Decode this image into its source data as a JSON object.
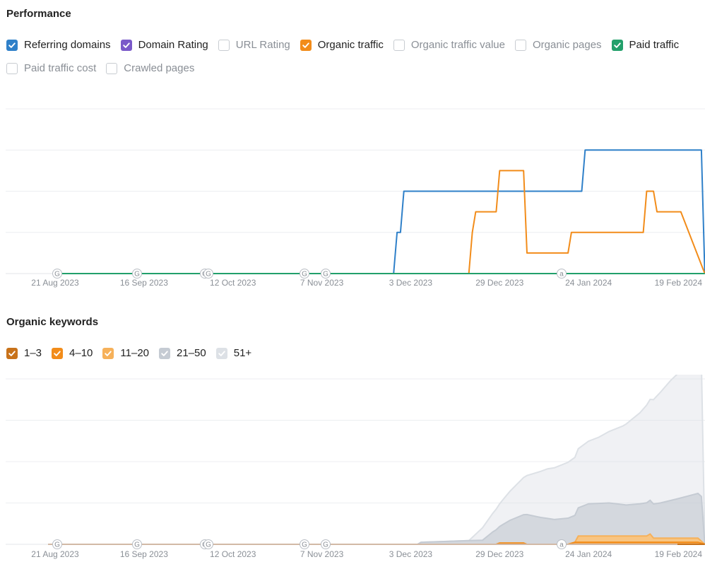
{
  "performance": {
    "title": "Performance",
    "legend_row1": [
      {
        "label": "Referring domains",
        "checked": true,
        "color": "#2f80c9"
      },
      {
        "label": "Domain Rating",
        "checked": true,
        "color": "#7a59c9"
      },
      {
        "label": "URL Rating",
        "checked": false,
        "color": "#c8ccd1"
      },
      {
        "label": "Organic traffic",
        "checked": true,
        "color": "#f28c1a"
      },
      {
        "label": "Organic traffic value",
        "checked": false,
        "color": "#c8ccd1"
      },
      {
        "label": "Organic pages",
        "checked": false,
        "color": "#c8ccd1"
      },
      {
        "label": "Paid traffic",
        "checked": true,
        "color": "#22a06b"
      }
    ],
    "legend_row2": [
      {
        "label": "Paid traffic cost",
        "checked": false,
        "color": "#c8ccd1"
      },
      {
        "label": "Crawled pages",
        "checked": false,
        "color": "#c8ccd1"
      }
    ]
  },
  "keywords": {
    "title": "Organic keywords",
    "legend": [
      {
        "label": "1–3",
        "checked": true,
        "color": "#c8721a"
      },
      {
        "label": "4–10",
        "checked": true,
        "color": "#f28c1a"
      },
      {
        "label": "11–20",
        "checked": true,
        "color": "#f6b15a"
      },
      {
        "label": "21–50",
        "checked": true,
        "color": "#c5cbd3"
      },
      {
        "label": "51+",
        "checked": true,
        "color": "#dde1e6"
      }
    ]
  },
  "chart_data": [
    {
      "type": "line",
      "title": "Performance",
      "x_ticks": [
        "21 Aug 2023",
        "16 Sep 2023",
        "12 Oct 2023",
        "7 Nov 2023",
        "3 Dec 2023",
        "29 Dec 2023",
        "24 Jan 2024",
        "19 Feb 2024"
      ],
      "event_markers": [
        "G",
        "G",
        "G",
        "G",
        "G",
        "G",
        "a"
      ],
      "ylim": [
        0,
        4
      ],
      "grid": true,
      "series": [
        {
          "name": "Referring domains",
          "color": "#2f80c9",
          "points": [
            [
              "2023-08-21",
              0
            ],
            [
              "2023-11-28",
              0
            ],
            [
              "2023-11-29",
              1
            ],
            [
              "2023-11-30",
              1
            ],
            [
              "2023-12-01",
              2
            ],
            [
              "2024-01-22",
              2
            ],
            [
              "2024-01-23",
              3
            ],
            [
              "2024-02-26",
              3
            ],
            [
              "2024-02-27",
              0
            ]
          ]
        },
        {
          "name": "Organic traffic",
          "color": "#f28c1a",
          "points": [
            [
              "2023-08-21",
              0
            ],
            [
              "2023-12-20",
              0
            ],
            [
              "2023-12-21",
              1
            ],
            [
              "2023-12-22",
              1.5
            ],
            [
              "2023-12-28",
              1.5
            ],
            [
              "2023-12-29",
              2.5
            ],
            [
              "2024-01-05",
              2.5
            ],
            [
              "2024-01-06",
              0.5
            ],
            [
              "2024-01-18",
              0.5
            ],
            [
              "2024-01-19",
              1
            ],
            [
              "2024-02-09",
              1
            ],
            [
              "2024-02-10",
              2
            ],
            [
              "2024-02-12",
              2
            ],
            [
              "2024-02-13",
              1.5
            ],
            [
              "2024-02-20",
              1.5
            ],
            [
              "2024-02-27",
              0
            ]
          ]
        },
        {
          "name": "Paid traffic",
          "color": "#22a06b",
          "points": [
            [
              "2023-08-21",
              0
            ],
            [
              "2024-02-27",
              0
            ]
          ]
        },
        {
          "name": "Domain Rating",
          "color": "#7a59c9",
          "points": [
            [
              "2023-08-21",
              0
            ],
            [
              "2024-02-27",
              0
            ]
          ]
        }
      ]
    },
    {
      "type": "area",
      "title": "Organic keywords",
      "x_ticks": [
        "21 Aug 2023",
        "16 Sep 2023",
        "12 Oct 2023",
        "7 Nov 2023",
        "3 Dec 2023",
        "29 Dec 2023",
        "24 Jan 2024",
        "19 Feb 2024"
      ],
      "event_markers": [
        "G",
        "G",
        "G",
        "G",
        "G",
        "G",
        "a"
      ],
      "ylim": [
        0,
        4
      ],
      "grid": true,
      "stacked": true,
      "series": [
        {
          "name": "1–3",
          "color": "#c8721a",
          "points": [
            [
              "2023-08-21",
              0
            ],
            [
              "2024-02-27",
              0
            ]
          ]
        },
        {
          "name": "4–10",
          "color": "#f28c1a",
          "points": [
            [
              "2023-08-21",
              0
            ],
            [
              "2023-12-28",
              0
            ],
            [
              "2023-12-29",
              0.03
            ],
            [
              "2024-01-05",
              0.03
            ],
            [
              "2024-01-06",
              0
            ],
            [
              "2024-01-18",
              0
            ],
            [
              "2024-01-20",
              0.05
            ],
            [
              "2024-02-25",
              0.05
            ],
            [
              "2024-02-27",
              0
            ]
          ]
        },
        {
          "name": "11–20",
          "color": "#f6b15a",
          "points": [
            [
              "2023-08-21",
              0
            ],
            [
              "2024-01-20",
              0
            ],
            [
              "2024-01-21",
              0.15
            ],
            [
              "2024-02-10",
              0.15
            ],
            [
              "2024-02-11",
              0.2
            ],
            [
              "2024-02-12",
              0.1
            ],
            [
              "2024-02-25",
              0.1
            ],
            [
              "2024-02-27",
              0
            ]
          ]
        },
        {
          "name": "21–50",
          "color": "#c5cbd3",
          "points": [
            [
              "2023-08-21",
              0
            ],
            [
              "2023-12-05",
              0
            ],
            [
              "2023-12-06",
              0.05
            ],
            [
              "2023-12-24",
              0.1
            ],
            [
              "2023-12-27",
              0.3
            ],
            [
              "2024-01-01",
              0.55
            ],
            [
              "2024-01-06",
              0.72
            ],
            [
              "2024-01-10",
              0.65
            ],
            [
              "2024-01-14",
              0.6
            ],
            [
              "2024-01-20",
              0.65
            ],
            [
              "2024-01-24",
              0.78
            ],
            [
              "2024-01-30",
              0.8
            ],
            [
              "2024-02-04",
              0.75
            ],
            [
              "2024-02-08",
              0.78
            ],
            [
              "2024-02-14",
              0.85
            ],
            [
              "2024-02-19",
              0.95
            ],
            [
              "2024-02-25",
              1.08
            ],
            [
              "2024-02-26",
              1.08
            ],
            [
              "2024-02-27",
              0
            ]
          ]
        },
        {
          "name": "51+",
          "color": "#dde1e6",
          "points": [
            [
              "2023-08-21",
              0
            ],
            [
              "2023-12-20",
              0
            ],
            [
              "2023-12-24",
              0.3
            ],
            [
              "2023-12-30",
              0.6
            ],
            [
              "2024-01-05",
              0.9
            ],
            [
              "2024-01-12",
              1.2
            ],
            [
              "2024-01-20",
              1.4
            ],
            [
              "2024-01-27",
              1.6
            ],
            [
              "2024-02-03",
              1.9
            ],
            [
              "2024-02-08",
              2.2
            ],
            [
              "2024-02-13",
              2.6
            ],
            [
              "2024-02-17",
              2.9
            ],
            [
              "2024-02-22",
              3.2
            ],
            [
              "2024-02-26",
              3.25
            ],
            [
              "2024-02-27",
              0
            ]
          ]
        }
      ]
    }
  ]
}
